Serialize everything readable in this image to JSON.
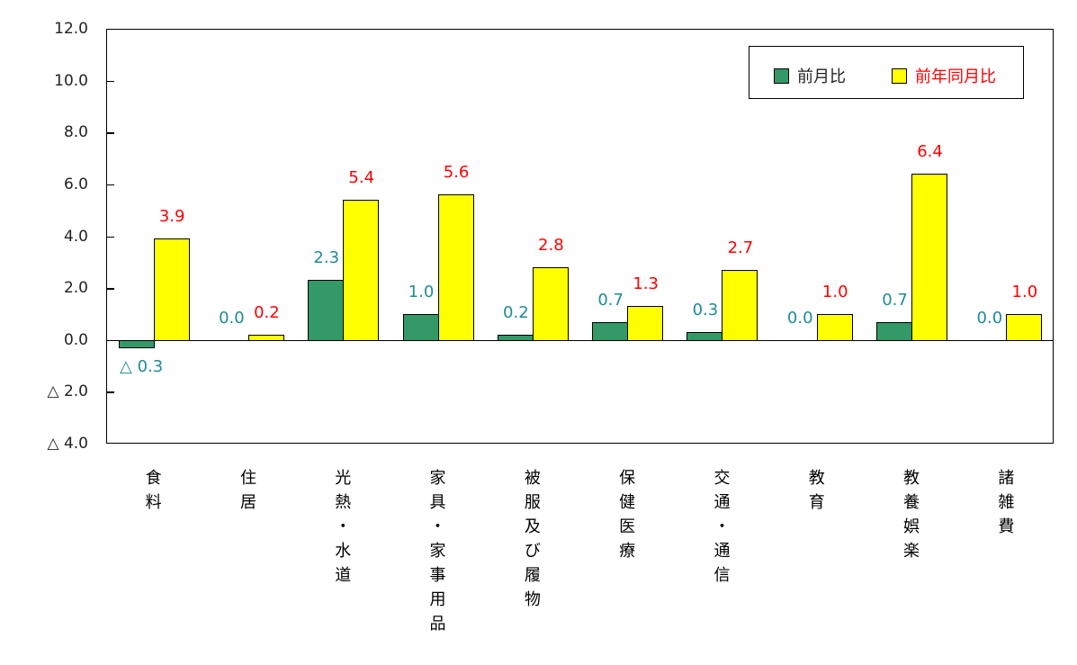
{
  "chart_data": {
    "type": "bar",
    "title": "",
    "xlabel": "",
    "ylabel": "",
    "ylim": [
      -4.0,
      12.0
    ],
    "yticks": [
      12.0,
      10.0,
      8.0,
      6.0,
      4.0,
      2.0,
      0.0,
      -2.0,
      -4.0
    ],
    "ytick_labels": [
      "12.0",
      "10.0",
      "8.0",
      "6.0",
      "4.0",
      "2.0",
      "0.0",
      "△ 2.0",
      "△ 4.0"
    ],
    "categories": [
      "食料",
      "住居",
      "光熱・水道",
      "家具・家事用品",
      "被服及び履物",
      "保健医療",
      "交通・通信",
      "教育",
      "教養娯楽",
      "諸雑費"
    ],
    "series": [
      {
        "name": "前月比",
        "color": "#339966",
        "label_color": "#1E8C96",
        "values": [
          -0.3,
          0.0,
          2.3,
          1.0,
          0.2,
          0.7,
          0.3,
          0.0,
          0.7,
          0.0
        ],
        "labels": [
          "△ 0.3",
          "0.0",
          "2.3",
          "1.0",
          "0.2",
          "0.7",
          "0.3",
          "0.0",
          "0.7",
          "0.0"
        ]
      },
      {
        "name": "前年同月比",
        "color": "#FFFF00",
        "label_color": "#FF0000",
        "values": [
          3.9,
          0.2,
          5.4,
          5.6,
          2.8,
          1.3,
          2.7,
          1.0,
          6.4,
          1.0
        ],
        "labels": [
          "3.9",
          "0.2",
          "5.4",
          "5.6",
          "2.8",
          "1.3",
          "2.7",
          "1.0",
          "6.4",
          "1.0"
        ]
      }
    ],
    "grid": false,
    "legend_position": "top-right inside"
  },
  "legend": {
    "items": [
      {
        "label": "前月比",
        "color": "#339966",
        "text_color": "#222222"
      },
      {
        "label": "前年同月比",
        "color": "#FFFF00",
        "text_color": "#FF0000"
      }
    ]
  }
}
